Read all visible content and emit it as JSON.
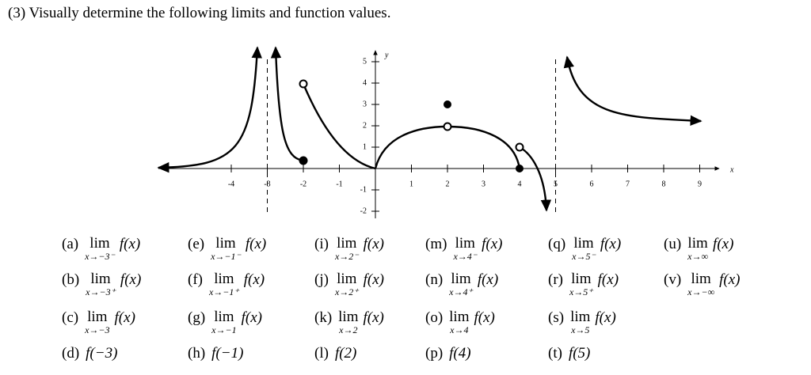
{
  "header": {
    "title": "(3) Visually determine the following limits and function values."
  },
  "graph": {
    "x_label": "x",
    "y_label": "y",
    "x_ticks": [
      -4,
      -3,
      -2,
      -1,
      1,
      2,
      3,
      4,
      5,
      6,
      7,
      8,
      9
    ],
    "y_ticks": [
      5,
      4,
      3,
      2,
      1,
      -1,
      -2
    ]
  },
  "problems": [
    {
      "label": "(a)",
      "op": "lim",
      "sub": "x→−3⁻",
      "expr": "f(x)"
    },
    {
      "label": "(b)",
      "op": "lim",
      "sub": "x→−3⁺",
      "expr": "f(x)"
    },
    {
      "label": "(c)",
      "op": "lim",
      "sub": "x→−3",
      "expr": "f(x)"
    },
    {
      "label": "(d)",
      "expr": "f(−3)"
    },
    {
      "label": "(e)",
      "op": "lim",
      "sub": "x→−1⁻",
      "expr": "f(x)"
    },
    {
      "label": "(f)",
      "op": "lim",
      "sub": "x→−1⁺",
      "expr": "f(x)"
    },
    {
      "label": "(g)",
      "op": "lim",
      "sub": "x→−1",
      "expr": "f(x)"
    },
    {
      "label": "(h)",
      "expr": "f(−1)"
    },
    {
      "label": "(i)",
      "op": "lim",
      "sub": "x→2⁻",
      "expr": "f(x)"
    },
    {
      "label": "(j)",
      "op": "lim",
      "sub": "x→2⁺",
      "expr": "f(x)"
    },
    {
      "label": "(k)",
      "op": "lim",
      "sub": "x→2",
      "expr": "f(x)"
    },
    {
      "label": "(l)",
      "expr": "f(2)"
    },
    {
      "label": "(m)",
      "op": "lim",
      "sub": "x→4⁻",
      "expr": "f(x)"
    },
    {
      "label": "(n)",
      "op": "lim",
      "sub": "x→4⁺",
      "expr": "f(x)"
    },
    {
      "label": "(o)",
      "op": "lim",
      "sub": "x→4",
      "expr": "f(x)"
    },
    {
      "label": "(p)",
      "expr": "f(4)"
    },
    {
      "label": "(q)",
      "op": "lim",
      "sub": "x→5⁻",
      "expr": "f(x)"
    },
    {
      "label": "(r)",
      "op": "lim",
      "sub": "x→5⁺",
      "expr": "f(x)"
    },
    {
      "label": "(s)",
      "op": "lim",
      "sub": "x→5",
      "expr": "f(x)"
    },
    {
      "label": "(t)",
      "expr": "f(5)"
    },
    {
      "label": "(u)",
      "op": "lim",
      "sub": "x→∞",
      "expr": "f(x)"
    },
    {
      "label": "(v)",
      "op": "lim",
      "sub": "x→−∞",
      "expr": "f(x)"
    }
  ]
}
